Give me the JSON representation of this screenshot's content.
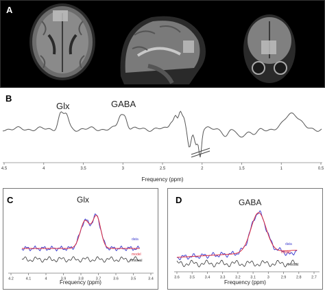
{
  "panel_a": {
    "letter": "A",
    "views": [
      "axial-mri",
      "sagittal-mri",
      "coronal-mri"
    ]
  },
  "panel_b": {
    "letter": "B",
    "peak_labels": [
      "Glx",
      "GABA"
    ],
    "x_ticks": [
      "4.5",
      "4",
      "3.5",
      "3",
      "2.5",
      "2",
      "1.5",
      "1",
      "0.5"
    ],
    "xlabel": "Frequency (ppm)",
    "xlim": [
      4.5,
      0.5
    ]
  },
  "panel_c": {
    "letter": "C",
    "title": "Glx",
    "x_ticks": [
      "4.2",
      "4.1",
      "4",
      "3.9",
      "3.8",
      "3.7",
      "3.6",
      "3.5",
      "3.4"
    ],
    "xlabel": "Frequency (ppm)",
    "legend": [
      "data",
      "model",
      "residual"
    ]
  },
  "panel_d": {
    "letter": "D",
    "title": "GABA",
    "x_ticks": [
      "3.6",
      "3.5",
      "3.4",
      "3.3",
      "3.2",
      "3.1",
      "3",
      "2.9",
      "2.8",
      "2.7"
    ],
    "xlabel": "Frequency (ppm)",
    "legend": [
      "data",
      "model",
      "residual"
    ]
  },
  "colors": {
    "data": "#4040d0",
    "model": "#e03040",
    "residual": "#333333",
    "spectrum": "#555555",
    "mri_background": "#000000",
    "voxel": "#bcbcbc"
  }
}
